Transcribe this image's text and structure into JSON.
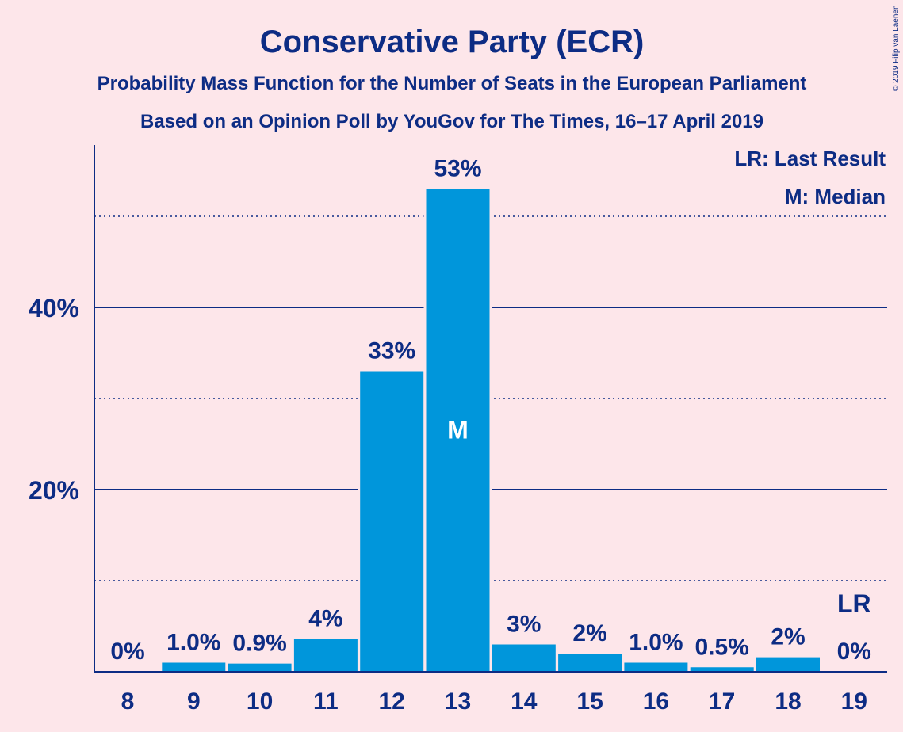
{
  "chart_data": {
    "type": "bar",
    "title": "Conservative Party (ECR)",
    "subtitle1": "Probability Mass Function for the Number of Seats in the European Parliament",
    "subtitle2": "Based on an Opinion Poll by YouGov for The Times, 16–17 April 2019",
    "copyright": "© 2019 Filip van Laenen",
    "legend": [
      "LR: Last Result",
      "M: Median"
    ],
    "categories": [
      "8",
      "9",
      "10",
      "11",
      "12",
      "13",
      "14",
      "15",
      "16",
      "17",
      "18",
      "19"
    ],
    "values": [
      0,
      1.0,
      0.9,
      3.6,
      33.0,
      53.0,
      3.0,
      2.0,
      1.0,
      0.5,
      1.6,
      0
    ],
    "value_labels": [
      "0%",
      "1.0%",
      "0.9%",
      "4%",
      "33%",
      "53%",
      "3%",
      "2%",
      "1.0%",
      "0.5%",
      "2%",
      "0%"
    ],
    "median_index": 5,
    "median_label": "M",
    "last_result_index": 11,
    "last_result_label": "LR",
    "y_ticks": [
      {
        "value": 20,
        "label": "20%"
      },
      {
        "value": 40,
        "label": "40%"
      }
    ],
    "y_dotted_gridlines": [
      10,
      30,
      50
    ],
    "ylim": [
      0,
      58
    ],
    "colors": {
      "background": "#fde6ea",
      "bar": "#0096db",
      "text": "#0d2c84",
      "axis": "#0d2c84"
    }
  }
}
